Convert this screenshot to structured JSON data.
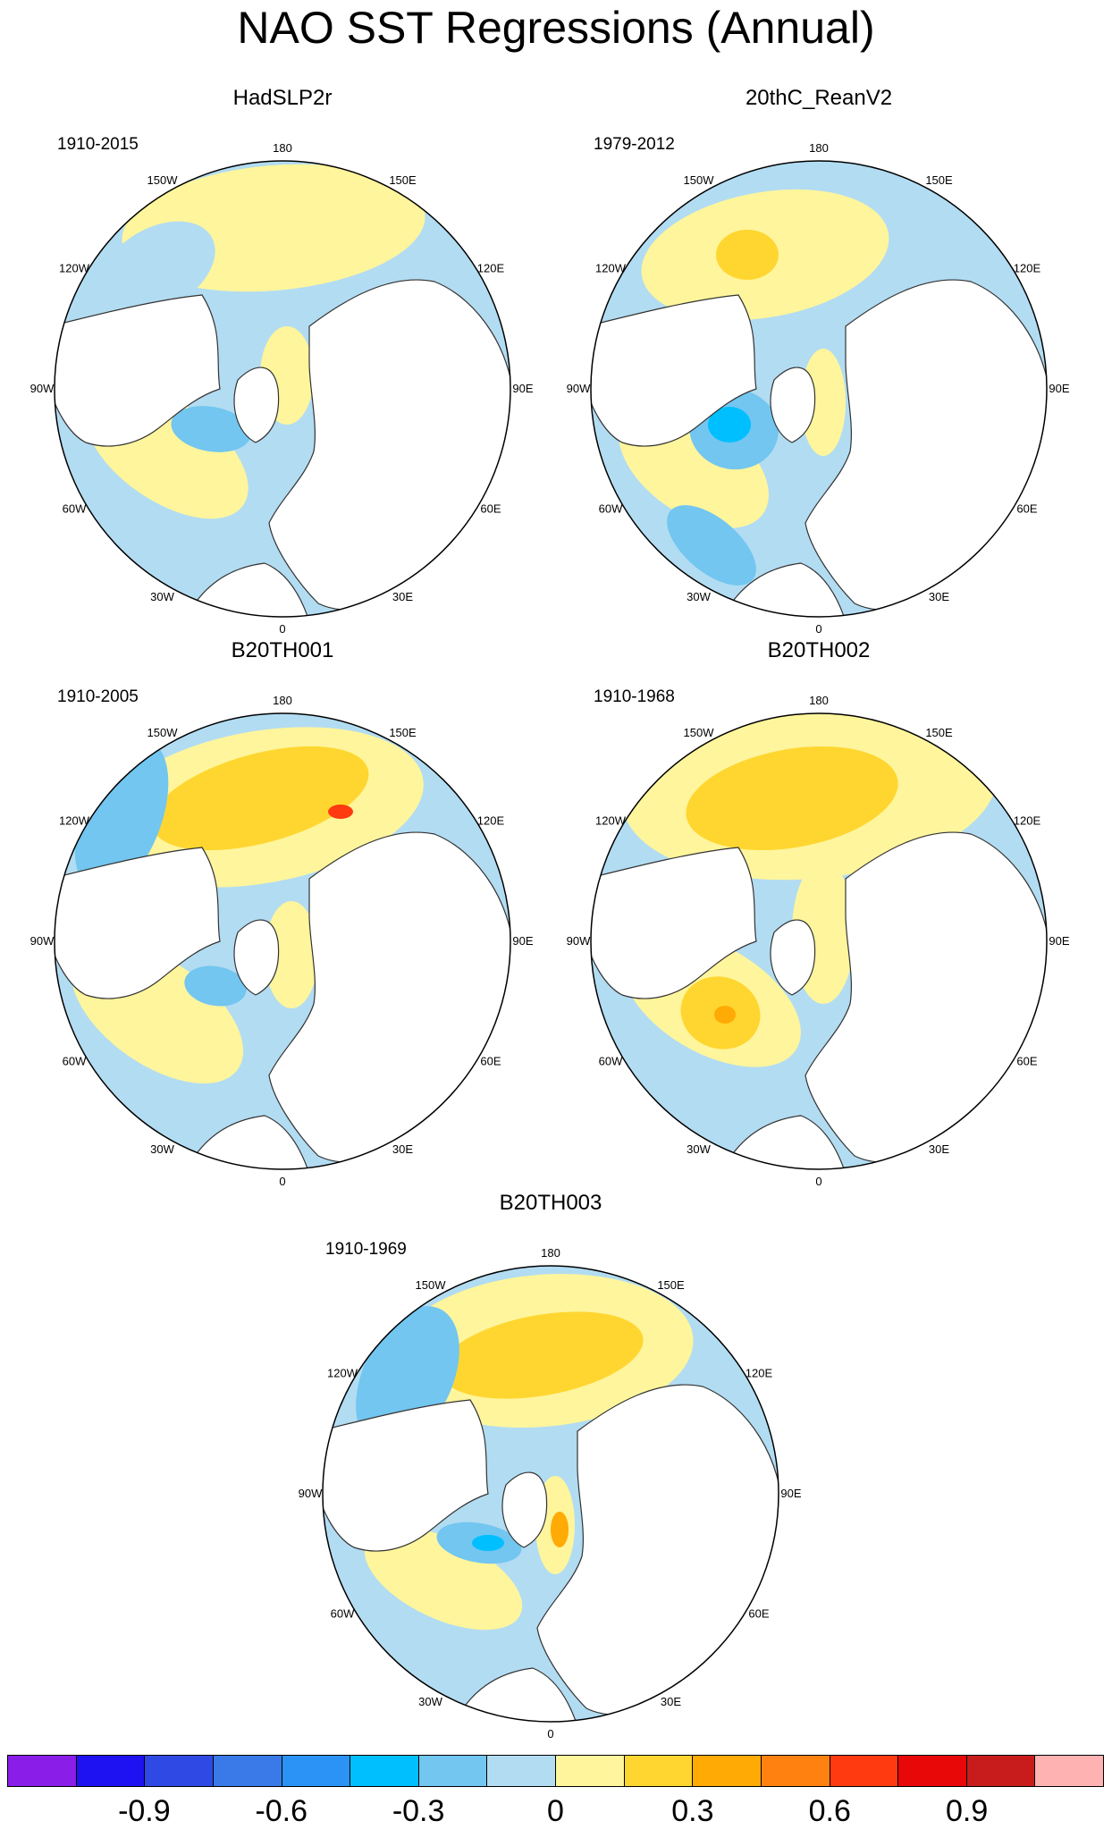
{
  "title": "NAO SST Regressions (Annual)",
  "panels": [
    {
      "name": "HadSLP2r",
      "period": "1910-2015"
    },
    {
      "name": "20thC_ReanV2",
      "period": "1979-2012"
    },
    {
      "name": "B20TH001",
      "period": "1910-2005"
    },
    {
      "name": "B20TH002",
      "period": "1910-1968"
    },
    {
      "name": "B20TH003",
      "period": "1910-1969"
    }
  ],
  "longitude_labels": {
    "top": "180",
    "upper_left": "150W",
    "upper_right": "150E",
    "left_upper": "120W",
    "right_upper": "120E",
    "left": "90W",
    "right": "90E",
    "left_lower": "60W",
    "right_lower": "60E",
    "lower_left": "30W",
    "lower_right": "30E",
    "bottom": "0"
  },
  "colorbar": {
    "colors": [
      "#8a1ee8",
      "#1e12f2",
      "#2f4ae4",
      "#3a7ae8",
      "#2a93f5",
      "#00bfff",
      "#72c6f0",
      "#b2dcf2",
      "#fff59c",
      "#ffd630",
      "#ffaa05",
      "#ff8210",
      "#ff3a10",
      "#e80808",
      "#c81c1c",
      "#ffb2b2"
    ],
    "tick_labels": [
      "-0.9",
      "-0.6",
      "-0.3",
      "0",
      "0.3",
      "0.6",
      "0.9"
    ]
  }
}
